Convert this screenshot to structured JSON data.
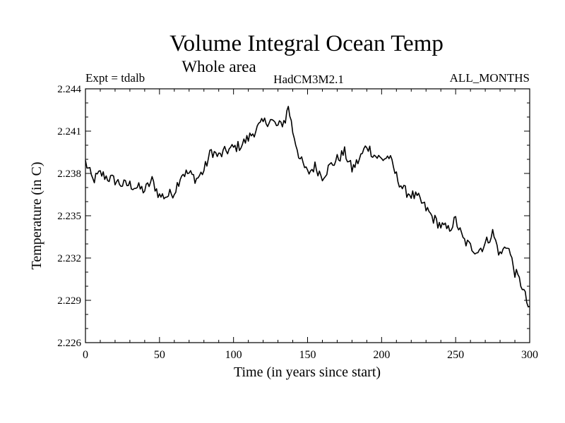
{
  "chart_data": {
    "type": "line",
    "title": "Volume Integral Ocean Temp",
    "subtitle": "Whole area",
    "annotations": {
      "left": "Expt = tdalb",
      "center": "HadCM3M2.1",
      "right": "ALL_MONTHS"
    },
    "xlabel": "Time (in years since start)",
    "ylabel": "Temperature (in C)",
    "xlim": [
      0,
      300
    ],
    "ylim": [
      2.226,
      2.244
    ],
    "x_ticks": [
      0,
      50,
      100,
      150,
      200,
      250,
      300
    ],
    "y_ticks": [
      "2.226",
      "2.229",
      "2.232",
      "2.235",
      "2.238",
      "2.241",
      "2.244"
    ],
    "grid": false,
    "series": [
      {
        "name": "Volume integral ocean temperature",
        "color": "#000000",
        "x": [
          0,
          5,
          10,
          15,
          20,
          25,
          30,
          35,
          40,
          45,
          50,
          55,
          60,
          65,
          70,
          75,
          80,
          85,
          90,
          95,
          100,
          105,
          110,
          115,
          120,
          125,
          130,
          135,
          137,
          140,
          145,
          150,
          155,
          160,
          165,
          170,
          175,
          180,
          185,
          190,
          195,
          200,
          205,
          210,
          215,
          220,
          225,
          230,
          235,
          240,
          245,
          250,
          255,
          260,
          265,
          270,
          275,
          280,
          285,
          290,
          295,
          300
        ],
        "values": [
          2.2388,
          2.2375,
          2.238,
          2.2377,
          2.2375,
          2.2372,
          2.2372,
          2.237,
          2.2368,
          2.2375,
          2.2364,
          2.2364,
          2.2367,
          2.238,
          2.238,
          2.2376,
          2.2382,
          2.2396,
          2.2392,
          2.2396,
          2.2398,
          2.24,
          2.2405,
          2.2411,
          2.2416,
          2.2418,
          2.2413,
          2.2418,
          2.2428,
          2.241,
          2.239,
          2.238,
          2.2385,
          2.2378,
          2.2385,
          2.239,
          2.2395,
          2.2383,
          2.239,
          2.24,
          2.2393,
          2.239,
          2.2392,
          2.2378,
          2.2368,
          2.2365,
          2.2362,
          2.2355,
          2.2348,
          2.2343,
          2.234,
          2.2347,
          2.2333,
          2.2328,
          2.2325,
          2.233,
          2.2338,
          2.2322,
          2.233,
          2.231,
          2.23,
          2.2282
        ]
      }
    ]
  }
}
